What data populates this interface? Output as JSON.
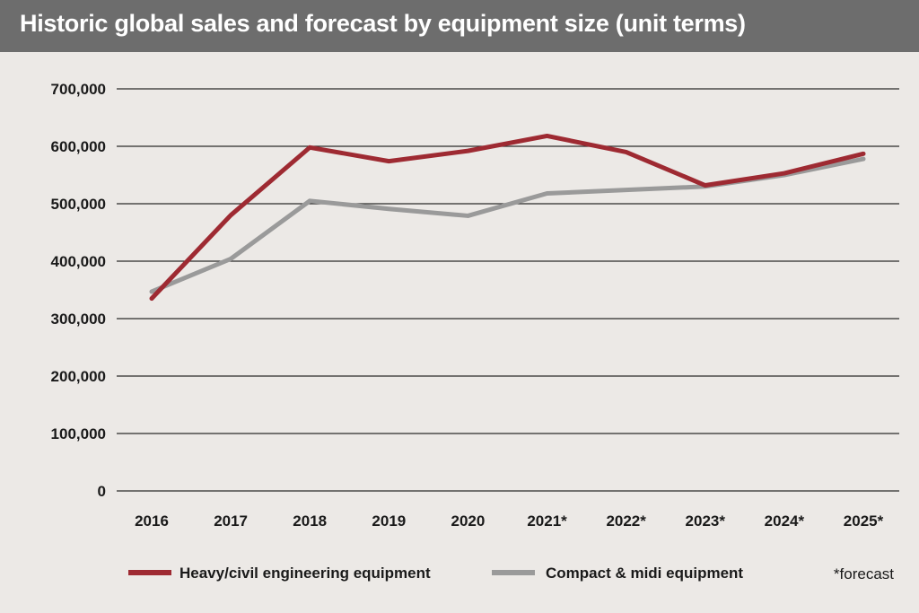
{
  "chart_data": {
    "type": "line",
    "title": "Historic global sales and forecast by equipment size (unit terms)",
    "xlabel": "",
    "ylabel": "",
    "categories": [
      "2016",
      "2017",
      "2018",
      "2019",
      "2020",
      "2021*",
      "2022*",
      "2023*",
      "2024*",
      "2025*"
    ],
    "ylim": [
      0,
      700000
    ],
    "yticks": [
      0,
      100000,
      200000,
      300000,
      400000,
      500000,
      600000,
      700000
    ],
    "ytick_labels": [
      "0",
      "100,000",
      "200,000",
      "300,000",
      "400,000",
      "500,000",
      "600,000",
      "700,000"
    ],
    "grid": true,
    "series": [
      {
        "name": "Heavy/civil engineering equipment",
        "color": "#9e2a32",
        "values": [
          335000,
          480000,
          598000,
          574000,
          592000,
          618000,
          590000,
          532000,
          553000,
          587000
        ]
      },
      {
        "name": "Compact & midi equipment",
        "color": "#9a9a9a",
        "values": [
          347000,
          404000,
          505000,
          491000,
          479000,
          518000,
          524000,
          530000,
          550000,
          578000
        ]
      }
    ],
    "legend_position": "bottom",
    "footnote": "*forecast"
  }
}
